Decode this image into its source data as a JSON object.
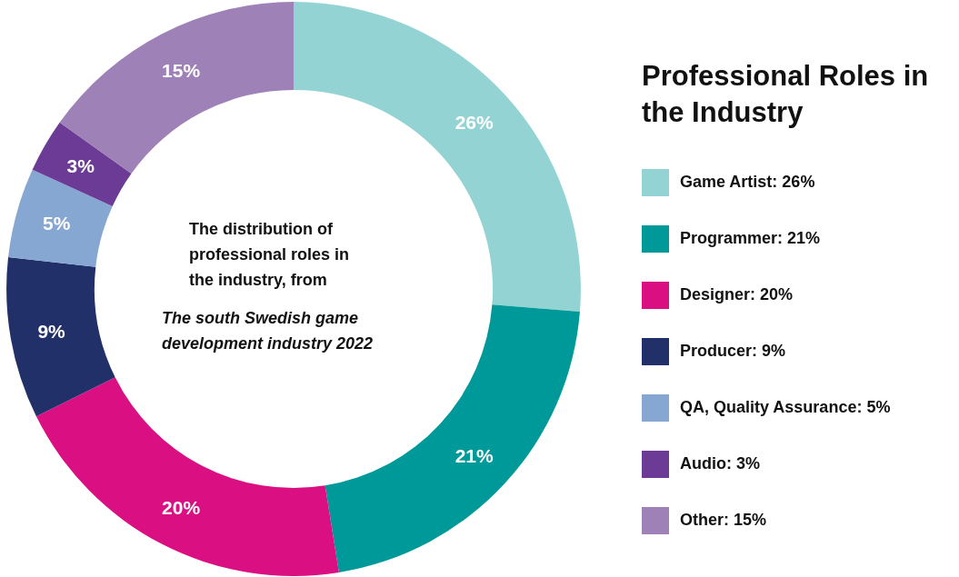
{
  "chart_data": {
    "type": "donut",
    "legend_title": "Professional Roles in the Industry",
    "categories": [
      "Game Artist: 26%",
      "Programmer: 21%",
      "Designer: 20%",
      "Producer: 9%",
      "QA, Quality Assurance: 5%",
      "Audio: 3%",
      "Other: 15%"
    ],
    "values": [
      26,
      21,
      20,
      9,
      5,
      3,
      15
    ],
    "value_labels": [
      "26%",
      "21%",
      "20%",
      "9%",
      "5%",
      "3%",
      "15%"
    ],
    "colors": [
      "#94d3d4",
      "#009999",
      "#d90f82",
      "#22306a",
      "#86a7d2",
      "#6c3b95",
      "#9e81b6"
    ],
    "legend": "right",
    "annotations": [
      "The distribution of professional roles in the industry, from",
      "The south Swedish game development industry 2022"
    ]
  }
}
